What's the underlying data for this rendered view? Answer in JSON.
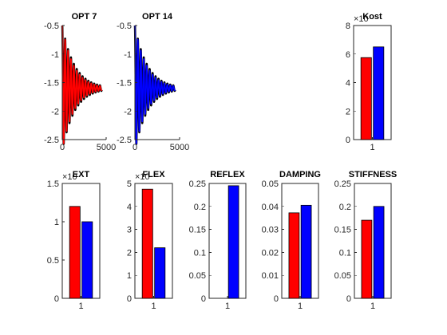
{
  "chart_data": [
    {
      "type": "line",
      "title": "OPT 7",
      "xlabel": "",
      "ylabel": "",
      "xlim": [
        0,
        5000
      ],
      "ylim": [
        -2.5,
        -0.5
      ],
      "xticks": [
        0,
        5000
      ],
      "xtick_labels": [
        "0",
        "5000"
      ],
      "yticks": [
        -2.5,
        -2,
        -1.5,
        -1,
        -0.5
      ],
      "ytick_labels": [
        "-2.5",
        "-2",
        "-1.5",
        "-1",
        "-0.5"
      ],
      "grid": false,
      "series": [
        {
          "color": "#000000",
          "signal": {
            "y_start": -0.5,
            "y_final": -1.6,
            "cycle_period": 330,
            "decay_time": 1400,
            "x_max": 4500
          }
        },
        {
          "color": "#ff0000",
          "signal": {
            "y_start": -0.5,
            "y_final": -1.6,
            "cycle_period": 330,
            "decay_time": 1300,
            "x_max": 4500
          }
        }
      ]
    },
    {
      "type": "line",
      "title": "OPT 14",
      "xlabel": "",
      "ylabel": "",
      "xlim": [
        0,
        5000
      ],
      "ylim": [
        -2.5,
        -0.5
      ],
      "xticks": [
        0,
        5000
      ],
      "xtick_labels": [
        "0",
        "5000"
      ],
      "yticks": [
        -2.5,
        -2,
        -1.5,
        -1,
        -0.5
      ],
      "ytick_labels": [
        "-2.5",
        "-2",
        "-1.5",
        "-1",
        "-0.5"
      ],
      "grid": false,
      "series": [
        {
          "color": "#000000",
          "signal": {
            "y_start": -0.5,
            "y_final": -1.6,
            "cycle_period": 330,
            "decay_time": 1400,
            "x_max": 4500
          }
        },
        {
          "color": "#0000ff",
          "signal": {
            "y_start": -0.5,
            "y_final": -1.6,
            "cycle_period": 330,
            "decay_time": 1300,
            "x_max": 4500
          }
        }
      ]
    },
    {
      "type": "bar",
      "title": "Kost",
      "exponent_label": "×10",
      "categories": [
        "1"
      ],
      "ylim": [
        0,
        8
      ],
      "yticks": [
        0,
        2,
        4,
        6,
        8
      ],
      "ytick_labels": [
        "0",
        "2",
        "4",
        "6",
        "8"
      ],
      "series": [
        {
          "color": "#ff0000",
          "values": [
            5.75
          ]
        },
        {
          "color": "#0000ff",
          "values": [
            6.5
          ]
        }
      ]
    },
    {
      "type": "bar",
      "title": "EXT",
      "exponent_label": "×10",
      "categories": [
        "1"
      ],
      "ylim": [
        0,
        1.5
      ],
      "yticks": [
        0,
        0.5,
        1,
        1.5
      ],
      "ytick_labels": [
        "0",
        "0.5",
        "1",
        "1.5"
      ],
      "series": [
        {
          "color": "#ff0000",
          "values": [
            1.2
          ]
        },
        {
          "color": "#0000ff",
          "values": [
            1.0
          ]
        }
      ]
    },
    {
      "type": "bar",
      "title": "FLEX",
      "exponent_label": "×10",
      "categories": [
        "1"
      ],
      "ylim": [
        0,
        5
      ],
      "yticks": [
        0,
        1,
        2,
        3,
        4,
        5
      ],
      "ytick_labels": [
        "0",
        "1",
        "2",
        "3",
        "4",
        "5"
      ],
      "series": [
        {
          "color": "#ff0000",
          "values": [
            4.75
          ]
        },
        {
          "color": "#0000ff",
          "values": [
            2.2
          ]
        }
      ]
    },
    {
      "type": "bar",
      "title": "REFLEX",
      "categories": [
        "1"
      ],
      "ylim": [
        0,
        0.25
      ],
      "yticks": [
        0,
        0.05,
        0.1,
        0.15,
        0.2,
        0.25
      ],
      "ytick_labels": [
        "0",
        "0.05",
        "0.1",
        "0.15",
        "0.2",
        "0.25"
      ],
      "series": [
        {
          "color": "#ff0000",
          "values": [
            0
          ]
        },
        {
          "color": "#0000ff",
          "values": [
            0.245
          ]
        }
      ]
    },
    {
      "type": "bar",
      "title": "DAMPING",
      "categories": [
        "1"
      ],
      "ylim": [
        0,
        0.05
      ],
      "yticks": [
        0,
        0.01,
        0.02,
        0.03,
        0.04,
        0.05
      ],
      "ytick_labels": [
        "0",
        "0.01",
        "0.02",
        "0.03",
        "0.04",
        "0.05"
      ],
      "series": [
        {
          "color": "#ff0000",
          "values": [
            0.0372
          ]
        },
        {
          "color": "#0000ff",
          "values": [
            0.0405
          ]
        }
      ]
    },
    {
      "type": "bar",
      "title": "STIFFNESS",
      "categories": [
        "1"
      ],
      "ylim": [
        0,
        0.25
      ],
      "yticks": [
        0,
        0.05,
        0.1,
        0.15,
        0.2,
        0.25
      ],
      "ytick_labels": [
        "0",
        "0.05",
        "0.1",
        "0.15",
        "0.2",
        "0.25"
      ],
      "series": [
        {
          "color": "#ff0000",
          "values": [
            0.17
          ]
        },
        {
          "color": "#0000ff",
          "values": [
            0.2
          ]
        }
      ]
    }
  ]
}
